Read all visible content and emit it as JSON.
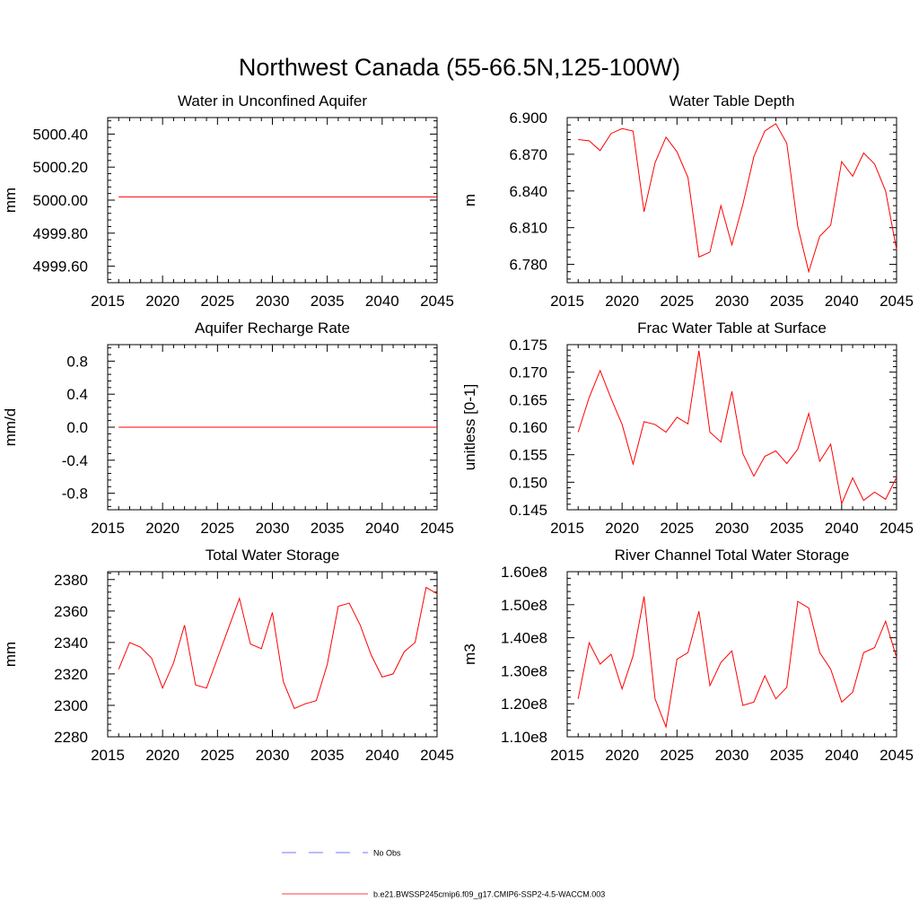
{
  "figure": {
    "title": "Northwest Canada (55-66.5N,125-100W)",
    "line_color": "#ff0000",
    "obs_color": "#4a4aff"
  },
  "legend": {
    "entries": [
      {
        "label": "No Obs",
        "style": "dashed",
        "color": "#4a4aff"
      },
      {
        "label": "b.e21.BWSSP245cmip6.f09_g17.CMIP6-SSP2-4.5-WACCM.003",
        "style": "solid",
        "color": "#ff0000"
      }
    ]
  },
  "chart_data": [
    {
      "id": "water-in-unconfined-aquifer",
      "type": "line",
      "title": "Water in Unconfined Aquifer",
      "ylabel": "mm",
      "xlim": [
        2015,
        2045
      ],
      "ylim": [
        4999.5,
        5000.5
      ],
      "xticks": [
        2015,
        2020,
        2025,
        2030,
        2035,
        2040,
        2045
      ],
      "yticks": [
        4999.6,
        4999.8,
        5000.0,
        5000.2,
        5000.4
      ],
      "ytick_labels": [
        "4999.60",
        "4999.80",
        "5000.00",
        "5000.20",
        "5000.40"
      ],
      "x": [
        2016,
        2017,
        2018,
        2019,
        2020,
        2021,
        2022,
        2023,
        2024,
        2025,
        2026,
        2027,
        2028,
        2029,
        2030,
        2031,
        2032,
        2033,
        2034,
        2035,
        2036,
        2037,
        2038,
        2039,
        2040,
        2041,
        2042,
        2043,
        2044,
        2045
      ],
      "values": [
        5000.02,
        5000.02,
        5000.02,
        5000.02,
        5000.02,
        5000.02,
        5000.02,
        5000.02,
        5000.02,
        5000.02,
        5000.02,
        5000.02,
        5000.02,
        5000.02,
        5000.02,
        5000.02,
        5000.02,
        5000.02,
        5000.02,
        5000.02,
        5000.02,
        5000.02,
        5000.02,
        5000.02,
        5000.02,
        5000.02,
        5000.02,
        5000.02,
        5000.02,
        5000.02
      ]
    },
    {
      "id": "water-table-depth",
      "type": "line",
      "title": "Water Table Depth",
      "ylabel": "m",
      "xlim": [
        2015,
        2045
      ],
      "ylim": [
        6.765,
        6.9
      ],
      "xticks": [
        2015,
        2020,
        2025,
        2030,
        2035,
        2040,
        2045
      ],
      "yticks": [
        6.78,
        6.81,
        6.84,
        6.87,
        6.9
      ],
      "ytick_labels": [
        "6.780",
        "6.810",
        "6.840",
        "6.870",
        "6.900"
      ],
      "x": [
        2016,
        2017,
        2018,
        2019,
        2020,
        2021,
        2022,
        2023,
        2024,
        2025,
        2026,
        2027,
        2028,
        2029,
        2030,
        2031,
        2032,
        2033,
        2034,
        2035,
        2036,
        2037,
        2038,
        2039,
        2040,
        2041,
        2042,
        2043,
        2044,
        2045
      ],
      "values": [
        6.882,
        6.881,
        6.873,
        6.887,
        6.891,
        6.889,
        6.823,
        6.863,
        6.884,
        6.872,
        6.851,
        6.786,
        6.79,
        6.828,
        6.796,
        6.829,
        6.868,
        6.889,
        6.895,
        6.879,
        6.811,
        6.774,
        6.803,
        6.812,
        6.864,
        6.852,
        6.871,
        6.862,
        6.84,
        6.792
      ]
    },
    {
      "id": "aquifer-recharge-rate",
      "type": "line",
      "title": "Aquifer Recharge Rate",
      "ylabel": "mm/d",
      "xlim": [
        2015,
        2045
      ],
      "ylim": [
        -1.0,
        1.0
      ],
      "xticks": [
        2015,
        2020,
        2025,
        2030,
        2035,
        2040,
        2045
      ],
      "yticks": [
        -0.8,
        -0.4,
        0.0,
        0.4,
        0.8
      ],
      "ytick_labels": [
        "-0.8",
        "-0.4",
        "0.0",
        "0.4",
        "0.8"
      ],
      "x": [
        2016,
        2017,
        2018,
        2019,
        2020,
        2021,
        2022,
        2023,
        2024,
        2025,
        2026,
        2027,
        2028,
        2029,
        2030,
        2031,
        2032,
        2033,
        2034,
        2035,
        2036,
        2037,
        2038,
        2039,
        2040,
        2041,
        2042,
        2043,
        2044,
        2045
      ],
      "values": [
        0,
        0,
        0,
        0,
        0,
        0,
        0,
        0,
        0,
        0,
        0,
        0,
        0,
        0,
        0,
        0,
        0,
        0,
        0,
        0,
        0,
        0,
        0,
        0,
        0,
        0,
        0,
        0,
        0,
        0
      ]
    },
    {
      "id": "frac-water-table-at-surface",
      "type": "line",
      "title": "Frac Water Table at Surface",
      "ylabel": "unitless [0-1]",
      "xlim": [
        2015,
        2045
      ],
      "ylim": [
        0.145,
        0.175
      ],
      "xticks": [
        2015,
        2020,
        2025,
        2030,
        2035,
        2040,
        2045
      ],
      "yticks": [
        0.145,
        0.15,
        0.155,
        0.16,
        0.165,
        0.17,
        0.175
      ],
      "ytick_labels": [
        "0.145",
        "0.150",
        "0.155",
        "0.160",
        "0.165",
        "0.170",
        "0.175"
      ],
      "x": [
        2016,
        2017,
        2018,
        2019,
        2020,
        2021,
        2022,
        2023,
        2024,
        2025,
        2026,
        2027,
        2028,
        2029,
        2030,
        2031,
        2032,
        2033,
        2034,
        2035,
        2036,
        2037,
        2038,
        2039,
        2040,
        2041,
        2042,
        2043,
        2044,
        2045
      ],
      "values": [
        0.1591,
        0.1654,
        0.1703,
        0.1652,
        0.1605,
        0.1533,
        0.161,
        0.1605,
        0.1591,
        0.1618,
        0.1606,
        0.1739,
        0.1591,
        0.1573,
        0.1665,
        0.1552,
        0.1511,
        0.1547,
        0.1557,
        0.1534,
        0.156,
        0.1625,
        0.1538,
        0.1569,
        0.1461,
        0.1508,
        0.1467,
        0.1482,
        0.1469,
        0.1509
      ]
    },
    {
      "id": "total-water-storage",
      "type": "line",
      "title": "Total Water Storage",
      "ylabel": "mm",
      "xlim": [
        2015,
        2045
      ],
      "ylim": [
        2280,
        2385
      ],
      "xticks": [
        2015,
        2020,
        2025,
        2030,
        2035,
        2040,
        2045
      ],
      "yticks": [
        2280,
        2300,
        2320,
        2340,
        2360,
        2380
      ],
      "ytick_labels": [
        "2280",
        "2300",
        "2320",
        "2340",
        "2360",
        "2380"
      ],
      "x": [
        2016,
        2017,
        2018,
        2019,
        2020,
        2021,
        2022,
        2023,
        2024,
        2025,
        2026,
        2027,
        2028,
        2029,
        2030,
        2031,
        2032,
        2033,
        2034,
        2035,
        2036,
        2037,
        2038,
        2039,
        2040,
        2041,
        2042,
        2043,
        2044,
        2045
      ],
      "values": [
        2323,
        2340,
        2337,
        2330,
        2311,
        2327,
        2351,
        2313,
        2311,
        2330,
        2349,
        2368,
        2339,
        2336,
        2359,
        2315,
        2298,
        2301,
        2303,
        2326,
        2363,
        2365,
        2351,
        2332,
        2318,
        2320,
        2334,
        2340,
        2375,
        2371
      ]
    },
    {
      "id": "river-channel-total-water-storage",
      "type": "line",
      "title": "River Channel Total Water Storage",
      "ylabel": "m3",
      "xlim": [
        2015,
        2045
      ],
      "ylim": [
        110000000,
        160000000
      ],
      "xticks": [
        2015,
        2020,
        2025,
        2030,
        2035,
        2040,
        2045
      ],
      "yticks": [
        110000000,
        120000000,
        130000000,
        140000000,
        150000000,
        160000000
      ],
      "ytick_labels": [
        "1.10e8",
        "1.20e8",
        "1.30e8",
        "1.40e8",
        "1.50e8",
        "1.60e8"
      ],
      "x": [
        2016,
        2017,
        2018,
        2019,
        2020,
        2021,
        2022,
        2023,
        2024,
        2025,
        2026,
        2027,
        2028,
        2029,
        2030,
        2031,
        2032,
        2033,
        2034,
        2035,
        2036,
        2037,
        2038,
        2039,
        2040,
        2041,
        2042,
        2043,
        2044,
        2045
      ],
      "values": [
        121500000,
        138500000,
        132000000,
        135000000,
        124500000,
        134500000,
        152500000,
        121500000,
        113000000,
        133500000,
        135500000,
        148000000,
        125500000,
        132500000,
        136000000,
        119500000,
        120500000,
        128500000,
        121500000,
        125000000,
        151000000,
        149000000,
        135500000,
        130500000,
        120500000,
        123500000,
        135500000,
        137000000,
        145000000,
        134000000
      ]
    }
  ]
}
